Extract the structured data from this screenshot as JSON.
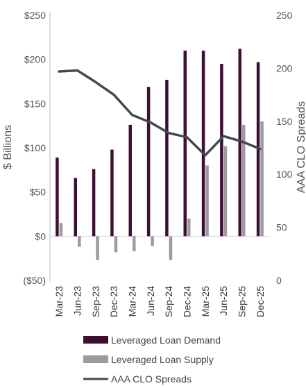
{
  "chart_data": {
    "type": "bar",
    "categories": [
      "Mar-23",
      "Jun-23",
      "Sep-23",
      "Dec-23",
      "Mar-24",
      "Jun-24",
      "Sep-24",
      "Dec-24",
      "Mar-25",
      "Jun-25",
      "Sep-25",
      "Dec-25"
    ],
    "series": [
      {
        "name": "Leveraged Loan Demand",
        "kind": "bar",
        "axis": "left",
        "color": "#3d1033",
        "values": [
          89,
          66,
          76,
          98,
          126,
          169,
          177,
          210,
          210,
          195,
          212,
          197
        ]
      },
      {
        "name": "Leveraged Loan Supply",
        "kind": "bar",
        "axis": "left",
        "color": "#9e9aa0",
        "values": [
          15,
          -12,
          -27,
          -18,
          -17,
          -11,
          -27,
          20,
          80,
          102,
          126,
          130
        ]
      },
      {
        "name": "AAA CLO Spreads",
        "kind": "line",
        "axis": "right",
        "color": "#3e4a52",
        "values": [
          197,
          198,
          187,
          175,
          156,
          149,
          139,
          135,
          118,
          136,
          131,
          124
        ]
      }
    ],
    "y_left": {
      "label": "$ Billions",
      "min": -50,
      "max": 250,
      "ticks": [
        250,
        200,
        150,
        100,
        50,
        0,
        -50
      ],
      "tick_labels": [
        "$250",
        "$200",
        "$150",
        "$100",
        "$50",
        "$0",
        "($50)"
      ]
    },
    "y_right": {
      "label": "AAA CLO Spreads",
      "min": 0,
      "max": 250,
      "ticks": [
        250,
        200,
        150,
        100,
        50,
        0
      ],
      "tick_labels": [
        "250",
        "200",
        "150",
        "100",
        "50",
        "0"
      ]
    },
    "grid": false,
    "legend_position": "bottom"
  }
}
